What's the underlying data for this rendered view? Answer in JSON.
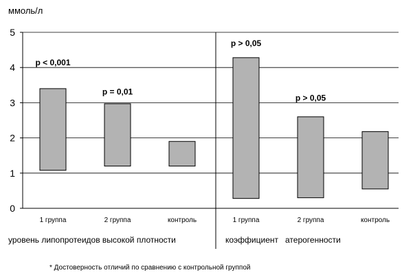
{
  "unit_label": "ммоль/л",
  "footnote": "* Достоверность отличий по сравнению с контрольной группой",
  "colors": {
    "bar_fill": "#b3b3b3",
    "bar_stroke": "#000000",
    "grid": "#000000"
  },
  "chart_data": {
    "type": "bar",
    "subtype": "floating-range",
    "ylim": [
      0,
      5
    ],
    "yticks": [
      0,
      1,
      2,
      3,
      4,
      5
    ],
    "grid": true,
    "ylabel": "ммоль/л",
    "groups": [
      {
        "label": "уровень липопротеидов высокой плотности",
        "categories": [
          "1 группа",
          "2 группа",
          "контроль"
        ],
        "ranges": [
          [
            1.08,
            3.4
          ],
          [
            1.2,
            2.97
          ],
          [
            1.2,
            1.9
          ]
        ],
        "annotations": [
          {
            "category": "1 группа",
            "text": "p < 0,001",
            "value": 4.0
          },
          {
            "category": "2 группа",
            "text": "p = 0,01",
            "value": 3.17
          }
        ]
      },
      {
        "label": "коэффициент   атерогенности",
        "categories": [
          "1 группа",
          "2 группа",
          "контроль"
        ],
        "ranges": [
          [
            0.28,
            4.28
          ],
          [
            0.3,
            2.6
          ],
          [
            0.55,
            2.18
          ]
        ],
        "annotations": [
          {
            "category": "1 группа",
            "text": "p > 0,05",
            "value": 4.55
          },
          {
            "category": "2 группа",
            "text": "p > 0,05",
            "value": 3.0
          }
        ]
      }
    ]
  }
}
